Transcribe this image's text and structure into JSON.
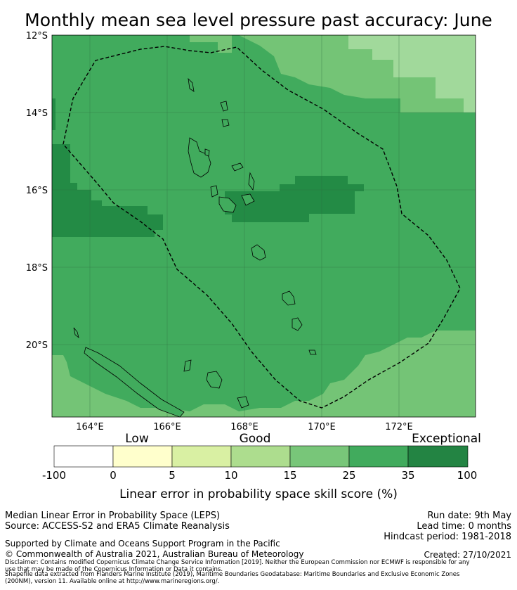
{
  "title": "Monthly mean sea level pressure past accuracy: June",
  "map": {
    "lat_labels": [
      "12°S",
      "14°S",
      "16°S",
      "18°S",
      "20°S"
    ],
    "lon_labels": [
      "164°E",
      "166°E",
      "168°E",
      "170°E",
      "172°E"
    ],
    "region": "Vanuatu EEZ",
    "colors": {
      "exceptional_dark": "#238b45",
      "dark": "#41ab5d",
      "medium": "#74c476",
      "light": "#a1d99b",
      "eez_line": "#000000"
    }
  },
  "colorbar": {
    "category_labels": [
      "Low",
      "Good",
      "Exceptional"
    ],
    "ticks": [
      "-100",
      "0",
      "5",
      "10",
      "15",
      "25",
      "35",
      "100"
    ],
    "colors": [
      "#ffffff",
      "#ffffcc",
      "#d9f0a3",
      "#addd8e",
      "#78c679",
      "#41ab5d",
      "#238443"
    ],
    "title": "Linear error in probability space skill score (%)"
  },
  "footer": {
    "line1": "Median Linear Error in Probability Space (LEPS)",
    "line2": "Source: ACCESS-S2 and ERA5 Climate Reanalysis",
    "run_date": "Run date: 9th May",
    "lead_time": "Lead time: 0 months",
    "hindcast": "Hindcast period: 1981-2018",
    "support": "Supported by Climate and Oceans Support Program in the Pacific",
    "copyright": "© Commonwealth of Australia 2021, Australian Bureau of Meteorology",
    "created": "Created: 27/10/2021",
    "disclaimer1": "Disclaimer: Contains modified Copernicus Climate Change Service Information [2019]. Neither the European Commission nor ECMWF is responsible for any",
    "disclaimer2": "use that may be made of the Copernicus Information or Data it contains.",
    "shapefile1": "Shapefile data extracted from Flanders Marine Institute (2019), Maritime Boundaries Geodatabase: Maritime Boundaries and Exclusive Economic Zones",
    "shapefile2": "(200NM), version 11. Available online at http://www.marineregions.org/."
  }
}
